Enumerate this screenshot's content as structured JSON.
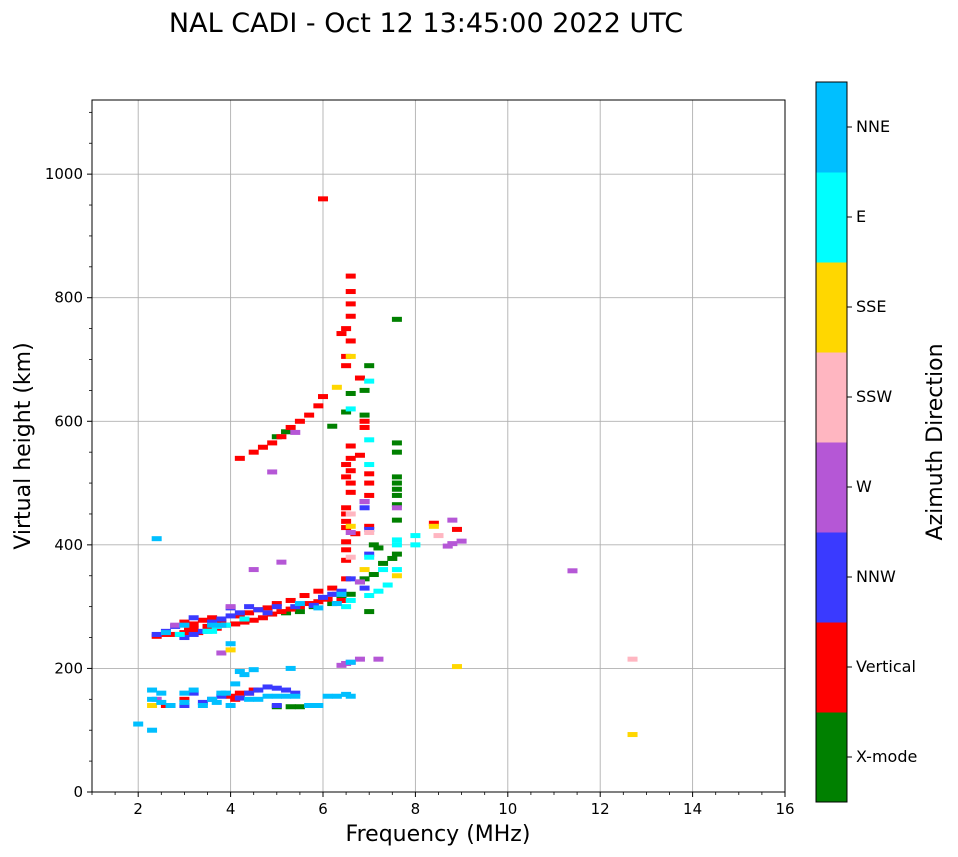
{
  "chart_data": {
    "type": "scatter",
    "title": "NAL CADI - Oct 12 13:45:00 2022 UTC",
    "xlabel": "Frequency (MHz)",
    "ylabel": "Virtual height (km)",
    "xlim": [
      1,
      16
    ],
    "ylim": [
      0,
      1120
    ],
    "xticks": [
      2,
      4,
      6,
      8,
      10,
      12,
      14,
      16
    ],
    "yticks": [
      0,
      200,
      400,
      600,
      800,
      1000
    ],
    "grid": true,
    "colorbar": {
      "title": "Azimuth Direction",
      "categories": [
        {
          "label": "X-mode",
          "color": "#008000"
        },
        {
          "label": "Vertical",
          "color": "#ff0000"
        },
        {
          "label": "NNW",
          "color": "#3a3aff"
        },
        {
          "label": "W",
          "color": "#b557d6"
        },
        {
          "label": "SSW",
          "color": "#ffb6c1"
        },
        {
          "label": "SSE",
          "color": "#ffd700"
        },
        {
          "label": "E",
          "color": "#00ffff"
        },
        {
          "label": "NNE",
          "color": "#00bfff"
        }
      ]
    },
    "series": [
      {
        "name": "X-mode",
        "color": "#008000",
        "points": [
          [
            5.0,
            138
          ],
          [
            5.3,
            138
          ],
          [
            5.5,
            138
          ],
          [
            5.2,
            290
          ],
          [
            5.5,
            292
          ],
          [
            5.8,
            300
          ],
          [
            6.2,
            305
          ],
          [
            6.4,
            312
          ],
          [
            6.6,
            320
          ],
          [
            6.8,
            340
          ],
          [
            6.9,
            345
          ],
          [
            7.1,
            352
          ],
          [
            7.3,
            370
          ],
          [
            7.5,
            378
          ],
          [
            7.6,
            385
          ],
          [
            7.0,
            292
          ],
          [
            7.6,
            440
          ],
          [
            7.6,
            465
          ],
          [
            7.6,
            480
          ],
          [
            7.6,
            490
          ],
          [
            7.6,
            500
          ],
          [
            7.6,
            510
          ],
          [
            7.6,
            550
          ],
          [
            7.6,
            565
          ],
          [
            7.6,
            765
          ],
          [
            7.0,
            690
          ],
          [
            6.6,
            645
          ],
          [
            6.9,
            650
          ],
          [
            6.5,
            615
          ],
          [
            6.2,
            592
          ],
          [
            5.0,
            575
          ],
          [
            5.2,
            583
          ],
          [
            6.9,
            610
          ],
          [
            7.1,
            400
          ],
          [
            7.2,
            395
          ]
        ]
      },
      {
        "name": "Vertical",
        "color": "#ff0000",
        "points": [
          [
            2.4,
            252
          ],
          [
            2.6,
            255
          ],
          [
            2.8,
            255
          ],
          [
            3.0,
            258
          ],
          [
            3.1,
            262
          ],
          [
            3.2,
            265
          ],
          [
            3.3,
            258
          ],
          [
            3.5,
            268
          ],
          [
            3.7,
            265
          ],
          [
            3.9,
            270
          ],
          [
            4.1,
            272
          ],
          [
            4.3,
            275
          ],
          [
            4.5,
            278
          ],
          [
            4.7,
            282
          ],
          [
            4.9,
            288
          ],
          [
            5.1,
            292
          ],
          [
            5.3,
            296
          ],
          [
            5.5,
            300
          ],
          [
            5.7,
            305
          ],
          [
            5.9,
            308
          ],
          [
            6.1,
            312
          ],
          [
            6.3,
            320
          ],
          [
            6.5,
            345
          ],
          [
            6.5,
            375
          ],
          [
            6.5,
            392
          ],
          [
            6.5,
            405
          ],
          [
            6.5,
            428
          ],
          [
            6.5,
            460
          ],
          [
            6.6,
            485
          ],
          [
            6.6,
            500
          ],
          [
            6.6,
            520
          ],
          [
            6.6,
            540
          ],
          [
            6.6,
            560
          ],
          [
            6.9,
            590
          ],
          [
            6.9,
            600
          ],
          [
            6.5,
            690
          ],
          [
            6.5,
            705
          ],
          [
            6.5,
            750
          ],
          [
            6.6,
            770
          ],
          [
            6.6,
            790
          ],
          [
            6.6,
            810
          ],
          [
            6.6,
            835
          ],
          [
            6.0,
            960
          ],
          [
            6.0,
            640
          ],
          [
            3.0,
            275
          ],
          [
            3.2,
            272
          ],
          [
            3.4,
            278
          ],
          [
            3.6,
            282
          ],
          [
            3.8,
            275
          ],
          [
            4.2,
            285
          ],
          [
            4.4,
            290
          ],
          [
            4.6,
            295
          ],
          [
            4.8,
            298
          ],
          [
            5.0,
            305
          ],
          [
            5.3,
            310
          ],
          [
            5.6,
            318
          ],
          [
            5.9,
            325
          ],
          [
            6.2,
            330
          ],
          [
            4.2,
            160
          ],
          [
            4.0,
            155
          ],
          [
            4.4,
            160
          ],
          [
            4.1,
            150
          ],
          [
            4.5,
            165
          ],
          [
            2.6,
            140
          ],
          [
            3.0,
            150
          ],
          [
            4.2,
            540
          ],
          [
            4.5,
            550
          ],
          [
            4.7,
            558
          ],
          [
            4.9,
            565
          ],
          [
            5.1,
            575
          ],
          [
            5.3,
            590
          ],
          [
            5.5,
            600
          ],
          [
            5.7,
            610
          ],
          [
            5.9,
            625
          ],
          [
            6.5,
            438
          ],
          [
            6.5,
            450
          ],
          [
            6.5,
            510
          ],
          [
            6.5,
            530
          ],
          [
            6.8,
            545
          ],
          [
            7.0,
            430
          ],
          [
            7.0,
            480
          ],
          [
            7.0,
            500
          ],
          [
            7.0,
            515
          ],
          [
            6.8,
            670
          ],
          [
            6.6,
            730
          ],
          [
            6.4,
            742
          ],
          [
            6.4,
            310
          ],
          [
            6.7,
            418
          ],
          [
            8.4,
            435
          ],
          [
            8.9,
            425
          ]
        ]
      },
      {
        "name": "NNW",
        "color": "#3a3aff",
        "points": [
          [
            3.0,
            250
          ],
          [
            3.2,
            255
          ],
          [
            3.4,
            260
          ],
          [
            3.0,
            140
          ],
          [
            3.4,
            145
          ],
          [
            3.6,
            150
          ],
          [
            4.4,
            160
          ],
          [
            4.6,
            165
          ],
          [
            4.8,
            170
          ],
          [
            5.0,
            168
          ],
          [
            5.2,
            165
          ],
          [
            5.4,
            160
          ],
          [
            3.6,
            275
          ],
          [
            3.8,
            280
          ],
          [
            4.0,
            285
          ],
          [
            4.2,
            290
          ],
          [
            4.6,
            295
          ],
          [
            5.0,
            300
          ],
          [
            5.4,
            300
          ],
          [
            5.8,
            302
          ],
          [
            6.0,
            315
          ],
          [
            6.2,
            320
          ],
          [
            6.4,
            325
          ],
          [
            6.6,
            345
          ],
          [
            2.4,
            255
          ],
          [
            2.6,
            260
          ],
          [
            2.8,
            268
          ],
          [
            3.2,
            282
          ],
          [
            4.0,
            298
          ],
          [
            4.4,
            300
          ],
          [
            4.8,
            290
          ],
          [
            4.2,
            152
          ],
          [
            3.8,
            155
          ],
          [
            3.2,
            160
          ],
          [
            5.0,
            140
          ],
          [
            7.0,
            385
          ],
          [
            6.9,
            330
          ],
          [
            7.0,
            425
          ],
          [
            6.9,
            460
          ],
          [
            6.9,
            470
          ]
        ]
      },
      {
        "name": "W",
        "color": "#b557d6",
        "points": [
          [
            4.9,
            518
          ],
          [
            6.6,
            210
          ],
          [
            6.8,
            215
          ],
          [
            7.2,
            215
          ],
          [
            8.8,
            402
          ],
          [
            9.0,
            406
          ],
          [
            8.7,
            398
          ],
          [
            8.8,
            440
          ],
          [
            11.4,
            358
          ],
          [
            4.0,
            300
          ],
          [
            4.5,
            360
          ],
          [
            5.1,
            372
          ],
          [
            6.6,
            420
          ],
          [
            6.8,
            340
          ],
          [
            6.9,
            470
          ],
          [
            7.6,
            460
          ],
          [
            6.4,
            205
          ],
          [
            6.5,
            208
          ],
          [
            2.4,
            150
          ],
          [
            2.8,
            270
          ],
          [
            3.8,
            225
          ],
          [
            5.4,
            582
          ]
        ]
      },
      {
        "name": "SSW",
        "color": "#ffb6c1",
        "points": [
          [
            12.7,
            215
          ],
          [
            6.6,
            450
          ],
          [
            6.6,
            380
          ],
          [
            7.0,
            420
          ],
          [
            8.5,
            415
          ]
        ]
      },
      {
        "name": "SSE",
        "color": "#ffd700",
        "points": [
          [
            12.7,
            93
          ],
          [
            8.9,
            203
          ],
          [
            6.6,
            705
          ],
          [
            6.3,
            655
          ],
          [
            6.6,
            430
          ],
          [
            7.6,
            350
          ],
          [
            8.4,
            430
          ],
          [
            2.3,
            140
          ],
          [
            4.0,
            230
          ],
          [
            6.9,
            360
          ]
        ]
      },
      {
        "name": "E",
        "color": "#00ffff",
        "points": [
          [
            2.9,
            255
          ],
          [
            3.5,
            260
          ],
          [
            3.7,
            268
          ],
          [
            3.9,
            270
          ],
          [
            4.3,
            280
          ],
          [
            6.5,
            300
          ],
          [
            6.6,
            310
          ],
          [
            7.0,
            318
          ],
          [
            7.2,
            325
          ],
          [
            7.4,
            335
          ],
          [
            7.6,
            360
          ],
          [
            7.6,
            400
          ],
          [
            7.6,
            408
          ],
          [
            8.0,
            415
          ],
          [
            8.0,
            400
          ],
          [
            7.0,
            665
          ],
          [
            7.0,
            570
          ],
          [
            7.0,
            530
          ],
          [
            6.6,
            620
          ],
          [
            3.6,
            260
          ],
          [
            7.0,
            380
          ],
          [
            7.3,
            360
          ]
        ]
      },
      {
        "name": "NNE",
        "color": "#00bfff",
        "points": [
          [
            2.0,
            110
          ],
          [
            2.3,
            100
          ],
          [
            2.3,
            165
          ],
          [
            2.3,
            150
          ],
          [
            2.5,
            160
          ],
          [
            2.5,
            145
          ],
          [
            2.7,
            140
          ],
          [
            3.0,
            145
          ],
          [
            3.0,
            160
          ],
          [
            3.2,
            165
          ],
          [
            3.4,
            140
          ],
          [
            3.6,
            150
          ],
          [
            3.7,
            145
          ],
          [
            3.8,
            160
          ],
          [
            3.9,
            160
          ],
          [
            4.0,
            140
          ],
          [
            4.1,
            175
          ],
          [
            4.3,
            190
          ],
          [
            4.4,
            150
          ],
          [
            4.6,
            150
          ],
          [
            4.8,
            155
          ],
          [
            5.0,
            155
          ],
          [
            5.2,
            155
          ],
          [
            5.4,
            155
          ],
          [
            5.7,
            140
          ],
          [
            5.9,
            140
          ],
          [
            6.1,
            155
          ],
          [
            6.3,
            155
          ],
          [
            6.5,
            158
          ],
          [
            6.6,
            155
          ],
          [
            6.6,
            210
          ],
          [
            5.3,
            200
          ],
          [
            3.6,
            270
          ],
          [
            3.8,
            270
          ],
          [
            2.6,
            258
          ],
          [
            2.4,
            410
          ],
          [
            3.0,
            270
          ],
          [
            4.0,
            240
          ],
          [
            4.2,
            195
          ],
          [
            4.5,
            198
          ],
          [
            6.4,
            320
          ],
          [
            6.3,
            305
          ],
          [
            5.5,
            305
          ],
          [
            5.9,
            298
          ]
        ]
      }
    ]
  }
}
